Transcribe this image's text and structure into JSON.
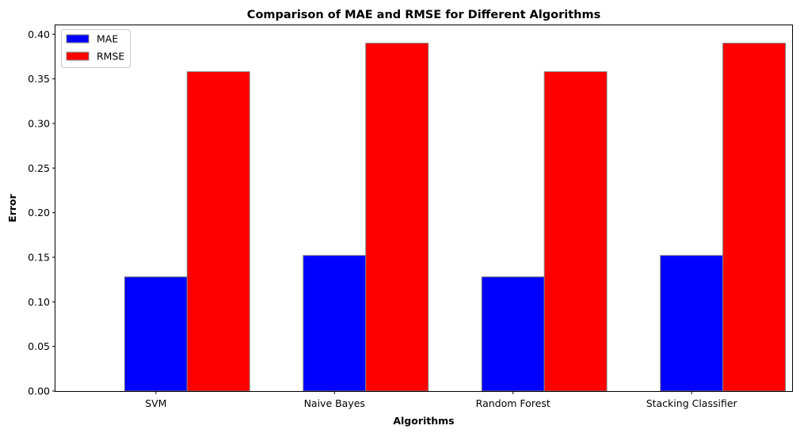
{
  "chart_data": {
    "type": "bar",
    "title": "Comparison of MAE and RMSE for Different Algorithms",
    "xlabel": "Algorithms",
    "ylabel": "Error",
    "categories": [
      "SVM",
      "Naive Bayes",
      "Random Forest",
      "Stacking Classifier"
    ],
    "series": [
      {
        "name": "MAE",
        "color": "#0000ff",
        "values": [
          0.128,
          0.152,
          0.128,
          0.152
        ]
      },
      {
        "name": "RMSE",
        "color": "#ff0000",
        "values": [
          0.358,
          0.39,
          0.358,
          0.39
        ]
      }
    ],
    "ylim": [
      0,
      0.41
    ],
    "yticks": [
      "0.00",
      "0.05",
      "0.10",
      "0.15",
      "0.20",
      "0.25",
      "0.30",
      "0.35",
      "0.40"
    ],
    "grid": false,
    "legend_position": "top-left",
    "bar_edge_color": "#808080"
  }
}
